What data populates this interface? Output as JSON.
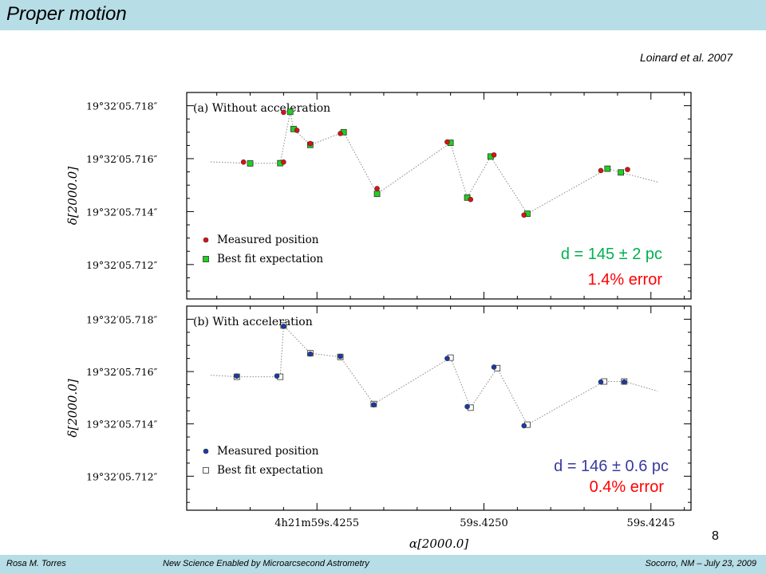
{
  "slide": {
    "title": "Proper motion",
    "citation": "Loinard et al. 2007",
    "number": "8"
  },
  "footer": {
    "author": "Rosa M. Torres",
    "talk": "New Science Enabled by Microarcsecond Astrometry",
    "venue": "Socorro, NM – July 23, 2009"
  },
  "colors": {
    "header_bg": "#b7dde6",
    "measured_a": "#e01010",
    "bestfit_a": "#20d020",
    "measured_b": "#1a3aa8",
    "bestfit_b": "#1a3aa8",
    "distance_a": "#00b050",
    "error_a": "#ff0000",
    "annot_b_distance": "#3a3a9e",
    "annot_b_error": "#ff0000"
  },
  "chart_data": [
    {
      "type": "scatter",
      "panel_label": "(a) Without acceleration",
      "xlabel": "α[2000.0]",
      "ylabel": "δ[2000.0]",
      "x_tick_labels": [
        "4h21m59s.4255",
        "59s.4250",
        "59s.4245"
      ],
      "x_ticks_data": [
        4255,
        4250,
        4245
      ],
      "xlim": [
        4258.9,
        4243.8
      ],
      "y_tick_labels": [
        "19°32′05.718″",
        "19°32′05.716″",
        "19°32′05.714″",
        "19°32′05.712″"
      ],
      "y_ticks_data": [
        5.718,
        5.716,
        5.714,
        5.712
      ],
      "ylim": [
        5.7107,
        5.7185
      ],
      "legend": [
        "Measured position",
        "Best fit expectation"
      ],
      "legend_position": "bottom-left",
      "annotation": {
        "distance": "d = 145 ± 2 pc",
        "error": "1.4% error"
      },
      "series": [
        {
          "name": "Measured position",
          "points": [
            {
              "x": 4256.0,
              "y": 5.71775
            },
            {
              "x": 4254.3,
              "y": 5.71695
            },
            {
              "x": 4255.2,
              "y": 5.71657
            },
            {
              "x": 4255.6,
              "y": 5.71707
            },
            {
              "x": 4256.0,
              "y": 5.71587
            },
            {
              "x": 4257.2,
              "y": 5.71587
            },
            {
              "x": 4253.2,
              "y": 5.71487
            },
            {
              "x": 4251.1,
              "y": 5.71663
            },
            {
              "x": 4250.4,
              "y": 5.71446
            },
            {
              "x": 4249.7,
              "y": 5.71614
            },
            {
              "x": 4248.8,
              "y": 5.71387
            },
            {
              "x": 4246.5,
              "y": 5.71555
            },
            {
              "x": 4245.7,
              "y": 5.71559
            }
          ]
        },
        {
          "name": "Best fit expectation",
          "points": [
            {
              "x": 4255.8,
              "y": 5.71777
            },
            {
              "x": 4254.2,
              "y": 5.717
            },
            {
              "x": 4255.2,
              "y": 5.71652
            },
            {
              "x": 4255.7,
              "y": 5.71712
            },
            {
              "x": 4256.1,
              "y": 5.71583
            },
            {
              "x": 4257.0,
              "y": 5.71582
            },
            {
              "x": 4253.2,
              "y": 5.71467
            },
            {
              "x": 4251.0,
              "y": 5.7166
            },
            {
              "x": 4250.5,
              "y": 5.71453
            },
            {
              "x": 4249.8,
              "y": 5.71608
            },
            {
              "x": 4248.7,
              "y": 5.71392
            },
            {
              "x": 4246.3,
              "y": 5.71562
            },
            {
              "x": 4245.9,
              "y": 5.71548
            }
          ]
        }
      ]
    },
    {
      "type": "scatter",
      "panel_label": "(b) With acceleration",
      "xlabel": "α[2000.0]",
      "ylabel": "δ[2000.0]",
      "x_tick_labels": [
        "4h21m59s.4255",
        "59s.4250",
        "59s.4245"
      ],
      "x_ticks_data": [
        4255,
        4250,
        4245
      ],
      "xlim": [
        4258.9,
        4243.8
      ],
      "y_tick_labels": [
        "19°32′05.718″",
        "19°32′05.716″",
        "19°32′05.714″",
        "19°32′05.712″"
      ],
      "y_ticks_data": [
        5.718,
        5.716,
        5.714,
        5.712
      ],
      "ylim": [
        5.7107,
        5.7185
      ],
      "legend": [
        "Measured position",
        "Best fit expectation"
      ],
      "legend_position": "bottom-left",
      "annotation": {
        "distance": "d = 146 ± 0.6 pc",
        "error": "0.4% error"
      },
      "series": [
        {
          "name": "Measured position",
          "points": [
            {
              "x": 4256.0,
              "y": 5.71773
            },
            {
              "x": 4254.3,
              "y": 5.71658
            },
            {
              "x": 4255.2,
              "y": 5.71667
            },
            {
              "x": 4256.2,
              "y": 5.71583
            },
            {
              "x": 4257.4,
              "y": 5.71583
            },
            {
              "x": 4253.3,
              "y": 5.71473
            },
            {
              "x": 4251.1,
              "y": 5.7165
            },
            {
              "x": 4250.5,
              "y": 5.71466
            },
            {
              "x": 4249.7,
              "y": 5.71617
            },
            {
              "x": 4248.8,
              "y": 5.71393
            },
            {
              "x": 4246.5,
              "y": 5.7156
            },
            {
              "x": 4245.8,
              "y": 5.7156
            }
          ]
        },
        {
          "name": "Best fit expectation",
          "points": [
            {
              "x": 4256.0,
              "y": 5.71776
            },
            {
              "x": 4254.3,
              "y": 5.71656
            },
            {
              "x": 4255.2,
              "y": 5.7167
            },
            {
              "x": 4256.1,
              "y": 5.7158
            },
            {
              "x": 4257.4,
              "y": 5.7158
            },
            {
              "x": 4253.3,
              "y": 5.71476
            },
            {
              "x": 4251.0,
              "y": 5.71653
            },
            {
              "x": 4250.4,
              "y": 5.71462
            },
            {
              "x": 4249.6,
              "y": 5.71613
            },
            {
              "x": 4248.7,
              "y": 5.71397
            },
            {
              "x": 4246.4,
              "y": 5.71562
            },
            {
              "x": 4245.8,
              "y": 5.71562
            }
          ]
        }
      ]
    }
  ]
}
